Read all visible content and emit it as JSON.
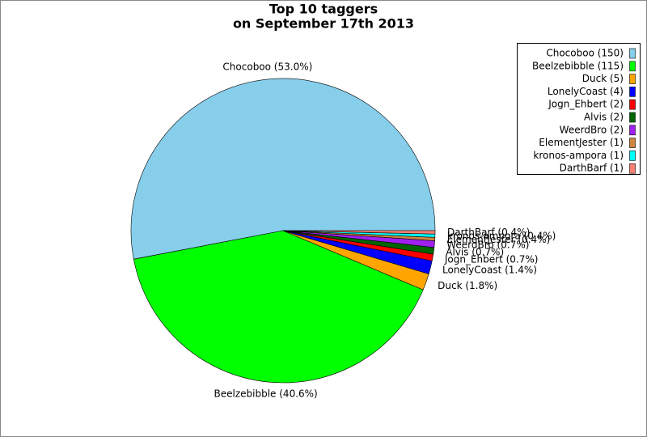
{
  "chart_data": {
    "type": "pie",
    "title": "Top 10 taggers",
    "subtitle": "on September 17th 2013",
    "categories": [
      "Chocoboo",
      "Beelzebibble",
      "Duck",
      "LonelyCoast",
      "Jogn_Ehbert",
      "Alvis",
      "WeerdBro",
      "ElementJester",
      "kronos-ampora",
      "DarthBarf"
    ],
    "values": [
      150,
      115,
      5,
      4,
      2,
      2,
      2,
      1,
      1,
      1
    ],
    "value_labels": [
      "Chocoboo (53.0%)",
      "Beelzebibble (40.6%)",
      "Duck (1.8%)",
      "LonelyCoast (1.4%)",
      "Jogn_Ehbert (0.7%)",
      "Alvis (0.7%)",
      "WeerdBro (0.7%)",
      "ElementJester (0.4%)",
      "kronos-ampora (0.4%)",
      "DarthBarf (0.4%)"
    ],
    "legend_labels": [
      "Chocoboo (150)",
      "Beelzebibble (115)",
      "Duck (5)",
      "LonelyCoast (4)",
      "Jogn_Ehbert (2)",
      "Alvis (2)",
      "WeerdBro (2)",
      "ElementJester (1)",
      "kronos-ampora (1)",
      "DarthBarf (1)"
    ],
    "colors": [
      "#87ceeb",
      "#00ff00",
      "#ffa500",
      "#0000ff",
      "#ff0000",
      "#006400",
      "#a020f0",
      "#cd853f",
      "#00ffff",
      "#fa8072"
    ],
    "legend": "upper right"
  }
}
